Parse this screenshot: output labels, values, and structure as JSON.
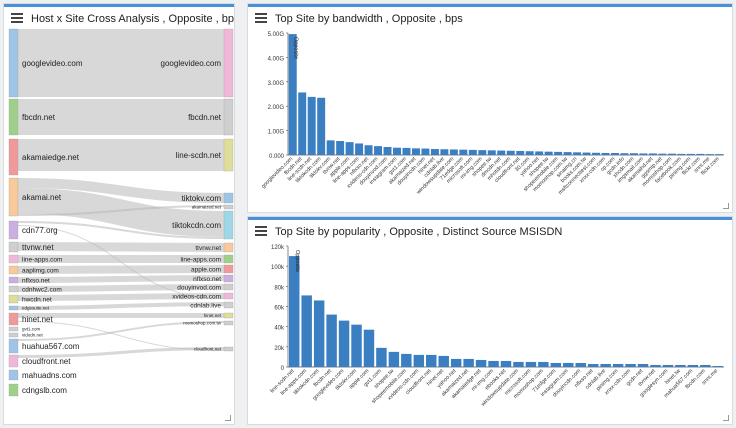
{
  "left_panel": {
    "title": "Host x Site Cross Analysis , Opposite , bps",
    "left_nodes": [
      {
        "label": "googlevideo.com",
        "color": "#9ec5e8"
      },
      {
        "label": "fbcdn.net",
        "color": "#9ed08c"
      },
      {
        "label": "akamaiedge.net",
        "color": "#f0999b"
      },
      {
        "label": "akamai.net",
        "color": "#f8c99a"
      },
      {
        "label": "cdn77.org",
        "color": "#c9b0e0"
      },
      {
        "label": "ttvnw.net",
        "color": "#cfcfcf"
      },
      {
        "label": "line-apps.com",
        "color": "#f0b8d8"
      },
      {
        "label": "aaplimg.com",
        "color": "#f8c99a"
      },
      {
        "label": "nflxso.net",
        "color": "#c9b0e0"
      },
      {
        "label": "cdnhwc2.com",
        "color": "#cfcfcf"
      },
      {
        "label": "hwcdn.net",
        "color": "#dede9a"
      },
      {
        "label": "edgesuite.net",
        "color": "#9ec5e8"
      },
      {
        "label": "hinet.net",
        "color": "#f0999b"
      },
      {
        "label": "gvt1.com",
        "color": "#cfcfcf"
      },
      {
        "label": "vidodn.net",
        "color": "#cfcfcf"
      },
      {
        "label": "huahua567.com",
        "color": "#9ec5e8"
      },
      {
        "label": "cloudfront.net",
        "color": "#f0b8d8"
      },
      {
        "label": "mahuadns.com",
        "color": "#9ec5e8"
      },
      {
        "label": "cdngslb.com",
        "color": "#9ed08c"
      }
    ],
    "right_nodes": [
      {
        "label": "googlevideo.com",
        "color": "#f0b8d8"
      },
      {
        "label": "fbcdn.net",
        "color": "#cfcfcf"
      },
      {
        "label": "line-scdn.net",
        "color": "#dede9a"
      },
      {
        "label": "tiktokv.com",
        "color": "#9ec5e8"
      },
      {
        "label": "akamaized.net",
        "color": "#cfcfcf"
      },
      {
        "label": "tiktokcdn.com",
        "color": "#9ed8e8"
      },
      {
        "label": "ttvnw.net",
        "color": "#f8c99a"
      },
      {
        "label": "line-apps.com",
        "color": "#9ed08c"
      },
      {
        "label": "apple.com",
        "color": "#f0999b"
      },
      {
        "label": "nflxso.net",
        "color": "#c9b0e0"
      },
      {
        "label": "douyinvod.com",
        "color": "#cfcfcf"
      },
      {
        "label": "xvideos-cdn.com",
        "color": "#f0b8d8"
      },
      {
        "label": "cdnlab.live",
        "color": "#cfcfcf"
      },
      {
        "label": "hinet.net",
        "color": "#dede9a"
      },
      {
        "label": "momoshop.com.tw",
        "color": "#cfcfcf"
      },
      {
        "label": "cloudfront.net",
        "color": "#cfcfcf"
      }
    ]
  },
  "top_chart": {
    "title": "Top Site by bandwidth , Opposite , bps"
  },
  "bottom_chart": {
    "title": "Top Site by popularity , Opposite , Distinct Source MSISDN"
  },
  "chart_data": [
    {
      "type": "bar",
      "title": "Top Site by bandwidth , Opposite , bps",
      "categories": [
        "googlevideo.com",
        "fbcdn.net",
        "line-scdn.net",
        "tiktokcdn.com",
        "tiktokv.com",
        "ttvnw.net",
        "apple.com",
        "line-apps.com",
        "nflxso.net",
        "xvideos-cdn.com",
        "douyinvod.com",
        "instagram.com",
        "gvt1.com",
        "akamaized.net",
        "douyincdn.com",
        "hinet.net",
        "cdnlab.live",
        "windowsupdate.com",
        "71edge.com",
        "microsoft.com",
        "mi-img.com",
        "shopee.tw",
        "dmcdn.net",
        "mhotdn.com",
        "cloudfront.net",
        "30.com",
        "yahoo.net",
        "shopee.tw",
        "shopeemobile.com",
        "momoshop.com.tw",
        "sinaimg.cn",
        "books.com.tw",
        "msftconnecttest.com",
        "xnxx-cdn.com",
        "cp.com",
        "gcdn.info",
        "xhcdn.com",
        "imgsmail.com",
        "akamaihd.net",
        "ggsmtp.net",
        "momoshop.com",
        "facebook.com",
        "pinimg.com",
        "flickr.com",
        "snnt.me",
        "flickr.com"
      ],
      "values": [
        5.45,
        2.82,
        2.62,
        2.58,
        0.66,
        0.63,
        0.58,
        0.52,
        0.44,
        0.4,
        0.36,
        0.33,
        0.32,
        0.3,
        0.29,
        0.27,
        0.26,
        0.25,
        0.24,
        0.23,
        0.22,
        0.21,
        0.2,
        0.19,
        0.18,
        0.17,
        0.16,
        0.15,
        0.14,
        0.13,
        0.12,
        0.11,
        0.1,
        0.09,
        0.09,
        0.08,
        0.08,
        0.07,
        0.07,
        0.06,
        0.06,
        0.05,
        0.05,
        0.05,
        0.04,
        0.04
      ],
      "yticks": [
        "0.000",
        "1.00G",
        "2.00G",
        "3.00G",
        "4.00G",
        "5.00G"
      ],
      "ylim": [
        0,
        5.5
      ],
      "bar_label": "Opposite"
    },
    {
      "type": "bar",
      "title": "Top Site by popularity , Opposite , Distinct Source MSISDN",
      "categories": [
        "line-scdn.net",
        "line-apps.com",
        "tiktokcdn.com",
        "fbcdn.net",
        "googlevideo.com",
        "tiktokv.com",
        "apple.com",
        "gvt1.com",
        "shopee.tw",
        "shopeemobile.com",
        "xvideos-cdn.com",
        "cloudfront.net",
        "hinet.net",
        "yahoo.net",
        "akamaized.net",
        "akamaiedge.net",
        "mi-img.com",
        "ebooks.net",
        "windowsupdate.com",
        "microsoft.com",
        "momoshop.com",
        "71edge.com",
        "instagram.com",
        "douyincdn.com",
        "nflxso.net",
        "cdnlab.live",
        "pinimg.com",
        "xnxx-cdn.com",
        "gcdn.net",
        "ttvnw.net",
        "googlesyn.com",
        "hinet.tw",
        "mahua567.com",
        "fbcdn.com",
        "snnt.me"
      ],
      "values": [
        110,
        71,
        66,
        52,
        46,
        42,
        37,
        19,
        15,
        13,
        12,
        12,
        11,
        8,
        8,
        7,
        6,
        6,
        5,
        5,
        5,
        4,
        4,
        4,
        3,
        3,
        3,
        3,
        3,
        2,
        2,
        2,
        2,
        2,
        1
      ],
      "yticks": [
        "0",
        "20k",
        "40k",
        "60k",
        "80k",
        "100k",
        "120k"
      ],
      "ylim": [
        0,
        120
      ],
      "bar_label": "Opposite"
    }
  ]
}
